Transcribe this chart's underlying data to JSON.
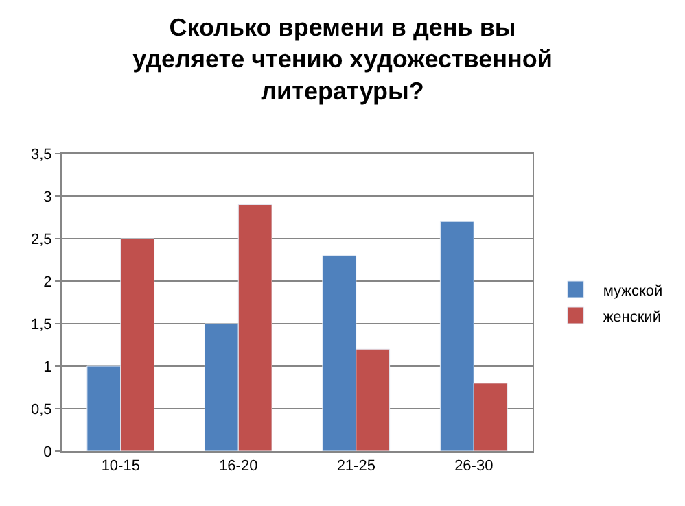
{
  "chart_data": {
    "type": "bar",
    "title": "Сколько времени в день вы уделяете чтению художественной литературы?",
    "categories": [
      "10-15",
      "16-20",
      "21-25",
      "26-30"
    ],
    "series": [
      {
        "name": "мужской",
        "color": "#4f81bd",
        "values": [
          1,
          1.5,
          2.3,
          2.7
        ]
      },
      {
        "name": "женский",
        "color": "#c0504d",
        "values": [
          2.5,
          2.9,
          1.2,
          0.8
        ]
      }
    ],
    "ylim": [
      0,
      3.5
    ],
    "yticks": [
      0,
      {
        "value": 0.5,
        "label": "0,5"
      },
      1,
      {
        "value": 1.5,
        "label": "1,5"
      },
      2,
      {
        "value": 2.5,
        "label": "2,5"
      },
      3,
      {
        "value": 3.5,
        "label": "3,5"
      }
    ],
    "grid": "y",
    "legend": "right"
  }
}
